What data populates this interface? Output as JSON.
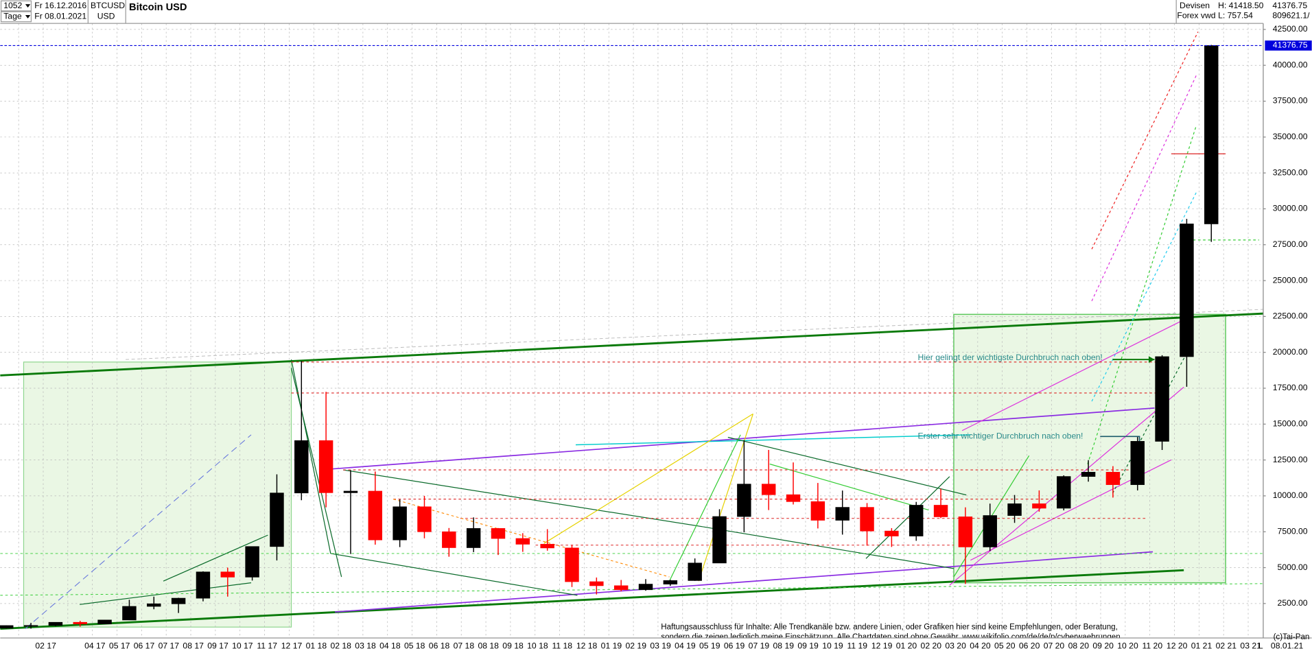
{
  "header": {
    "count": "1052",
    "start": "Fr 16.12.2016",
    "period": "Tage",
    "end": "Fr 08.01.2021",
    "symbol": "BTCUSD",
    "currency": "USD",
    "title": "Bitcoin USD",
    "market": "Devisen",
    "source": "Forex vwd",
    "high": "H: 41418.50",
    "low": "L: 757.54",
    "volume": "809621.1/"
  },
  "chart_data": {
    "type": "candlestick",
    "categories": [
      null,
      null,
      "02 17",
      null,
      "04 17",
      "05 17",
      "06 17",
      "07 17",
      "08 17",
      "09 17",
      "10 17",
      "11 17",
      "12 17",
      "01 18",
      "02 18",
      "03 18",
      "04 18",
      "05 18",
      "06 18",
      "07 18",
      "08 18",
      "09 18",
      "10 18",
      "11 18",
      "12 18",
      "01 19",
      "02 19",
      "03 19",
      "04 19",
      "05 19",
      "06 19",
      "07 19",
      "08 19",
      "09 19",
      "10 19",
      "11 19",
      "12 19",
      "01 20",
      "02 20",
      "03 20",
      "04 20",
      "05 20",
      "06 20",
      "07 20",
      "08 20",
      "09 20",
      "10 20",
      "11 20",
      "12 20",
      "01 21",
      "02 21",
      "03 21"
    ],
    "open": [
      780,
      964,
      970,
      1190,
      1080,
      1350,
      2300,
      2480,
      2870,
      4700,
      4340,
      6470,
      10200,
      13850,
      10220,
      10330,
      6930,
      9240,
      7500,
      6390,
      7730,
      7030,
      6630,
      6370,
      4020,
      3740,
      3460,
      3850,
      4100,
      5320,
      8560,
      10820,
      10080,
      9600,
      8300,
      9200,
      7550,
      7200,
      9350,
      8540,
      6440,
      8630,
      9450,
      9140,
      11350,
      11650,
      10780,
      13800,
      19700,
      28950,
      null,
      null
    ],
    "high": [
      970,
      1150,
      1200,
      1290,
      1350,
      2760,
      2980,
      2900,
      4740,
      5000,
      6470,
      11500,
      19400,
      17250,
      11790,
      11700,
      9750,
      10000,
      7760,
      8500,
      7760,
      7400,
      7680,
      6580,
      4310,
      4140,
      4200,
      4150,
      5640,
      9070,
      13880,
      13200,
      12330,
      10900,
      10370,
      9500,
      7750,
      9580,
      10500,
      9200,
      9460,
      10060,
      10380,
      11430,
      12480,
      12070,
      14100,
      19800,
      29300,
      41418.5,
      null,
      null
    ],
    "low": [
      757.54,
      750,
      920,
      890,
      1060,
      1350,
      2100,
      1840,
      2650,
      2980,
      4100,
      5500,
      9700,
      9200,
      5950,
      6600,
      6430,
      7040,
      5760,
      6080,
      5880,
      6100,
      6180,
      3650,
      3130,
      3350,
      3390,
      3730,
      4080,
      5320,
      7460,
      9010,
      9400,
      7730,
      7300,
      6530,
      6440,
      6870,
      8450,
      3860,
      6160,
      8120,
      8900,
      8990,
      10990,
      9880,
      10380,
      13200,
      17600,
      27700,
      null,
      null
    ],
    "close": [
      964,
      970,
      1190,
      1080,
      1350,
      2300,
      2480,
      2870,
      4700,
      4340,
      6470,
      10200,
      13850,
      10220,
      10330,
      6930,
      9240,
      7500,
      6390,
      7730,
      7030,
      6630,
      6370,
      4020,
      3740,
      3460,
      3850,
      4100,
      5320,
      8560,
      10820,
      10080,
      9600,
      8300,
      9200,
      7550,
      7200,
      9350,
      8540,
      6440,
      8630,
      9450,
      9140,
      11350,
      11650,
      10780,
      13800,
      19700,
      28950,
      41376.75,
      null,
      null
    ],
    "up_color": "#000000",
    "down_color": "#ff0000",
    "ylim": [
      100,
      44550
    ],
    "yticks": [
      {
        "value": 2500,
        "label": "2500.00"
      },
      {
        "value": 5000,
        "label": "5000.00"
      },
      {
        "value": 7500,
        "label": "7500.00"
      },
      {
        "value": 10000,
        "label": "10000.00"
      },
      {
        "value": 12500,
        "label": "12500.00"
      },
      {
        "value": 15000,
        "label": "15000.00"
      },
      {
        "value": 17500,
        "label": "17500.00"
      },
      {
        "value": 20000,
        "label": "20000.00"
      },
      {
        "value": 22500,
        "label": "22500.00"
      },
      {
        "value": 25000,
        "label": "25000.00"
      },
      {
        "value": 27500,
        "label": "27500.00"
      },
      {
        "value": 30000,
        "label": "30000.00"
      },
      {
        "value": 32500,
        "label": "32500.00"
      },
      {
        "value": 35000,
        "label": "35000.00"
      },
      {
        "value": 37500,
        "label": "37500.00"
      },
      {
        "value": 40000,
        "label": "40000.00"
      },
      {
        "value": 42500,
        "label": "42500.00"
      }
    ],
    "grid": true,
    "last_price": 41376.75,
    "last_price_color": "#0000dd",
    "annotations": [
      "Hier gelingt der wichtigste Durchbruch nach oben!",
      "Erster sehr wichtiger Durchbruch nach oben!"
    ],
    "disclaimer": [
      "Haftungsausschluss für Inhalte: Alle Trendkanäle bzw. andere Linien, oder Grafiken hier sind keine Empfehlungen, oder Beratung,",
      "sondern die zeigen lediglich meine  Einschätzung. Alle Chartdaten sind ohne Gewähr.  www.wikifolio.com/de/de/p/cyberwaehrungen"
    ],
    "copyright": "(c)Tai-Pan",
    "scale_mode": "L",
    "last_date": "08.01.21"
  }
}
